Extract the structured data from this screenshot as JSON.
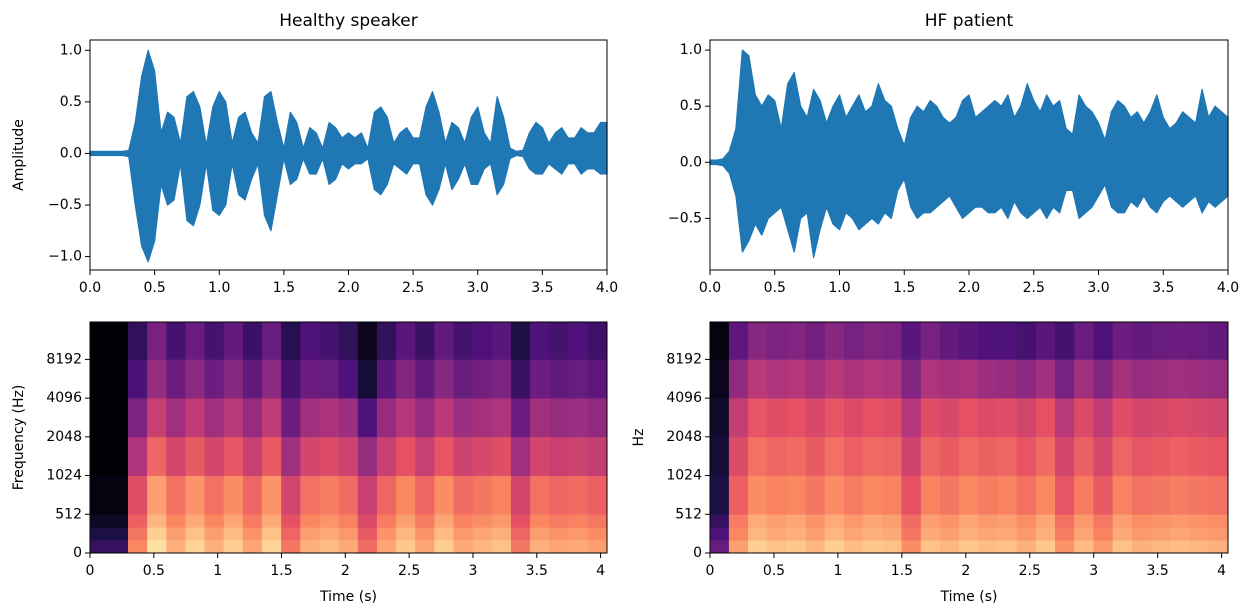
{
  "chart_data": [
    {
      "type": "waveform",
      "title": "Healthy speaker",
      "ylabel": "Amplitude",
      "color": "#1f77b4",
      "x": [
        0,
        0.05,
        0.1,
        0.15,
        0.2,
        0.25,
        0.3,
        0.35,
        0.4,
        0.45,
        0.5,
        0.55,
        0.6,
        0.65,
        0.7,
        0.75,
        0.8,
        0.85,
        0.9,
        0.95,
        1,
        1.05,
        1.1,
        1.15,
        1.2,
        1.25,
        1.3,
        1.35,
        1.4,
        1.45,
        1.5,
        1.55,
        1.6,
        1.65,
        1.7,
        1.75,
        1.8,
        1.85,
        1.9,
        1.95,
        2,
        2.05,
        2.1,
        2.15,
        2.2,
        2.25,
        2.3,
        2.35,
        2.4,
        2.45,
        2.5,
        2.55,
        2.6,
        2.65,
        2.7,
        2.75,
        2.8,
        2.85,
        2.9,
        2.95,
        3,
        3.05,
        3.1,
        3.15,
        3.2,
        3.25,
        3.3,
        3.35,
        3.4,
        3.45,
        3.5,
        3.55,
        3.6,
        3.65,
        3.7,
        3.75,
        3.8,
        3.85,
        3.9,
        3.95,
        4
      ],
      "upper": [
        0.02,
        0.02,
        0.02,
        0.02,
        0.02,
        0.02,
        0.03,
        0.3,
        0.75,
        1.0,
        0.8,
        0.2,
        0.4,
        0.35,
        0.1,
        0.55,
        0.6,
        0.45,
        0.08,
        0.45,
        0.6,
        0.5,
        0.1,
        0.35,
        0.4,
        0.2,
        0.1,
        0.55,
        0.6,
        0.3,
        0.05,
        0.4,
        0.3,
        0.05,
        0.25,
        0.2,
        0.05,
        0.3,
        0.25,
        0.15,
        0.2,
        0.15,
        0.2,
        0.05,
        0.4,
        0.45,
        0.35,
        0.1,
        0.2,
        0.25,
        0.15,
        0.15,
        0.45,
        0.6,
        0.4,
        0.1,
        0.3,
        0.25,
        0.1,
        0.35,
        0.45,
        0.2,
        0.1,
        0.55,
        0.35,
        0.05,
        0.02,
        0.03,
        0.2,
        0.3,
        0.25,
        0.1,
        0.2,
        0.25,
        0.15,
        0.15,
        0.25,
        0.2,
        0.2,
        0.3,
        0.3
      ],
      "lower": [
        -0.02,
        -0.02,
        -0.02,
        -0.02,
        -0.02,
        -0.02,
        -0.03,
        -0.5,
        -0.9,
        -1.05,
        -0.85,
        -0.3,
        -0.5,
        -0.45,
        -0.1,
        -0.65,
        -0.7,
        -0.5,
        -0.1,
        -0.55,
        -0.6,
        -0.5,
        -0.1,
        -0.4,
        -0.45,
        -0.25,
        -0.1,
        -0.6,
        -0.75,
        -0.4,
        -0.05,
        -0.3,
        -0.25,
        -0.05,
        -0.2,
        -0.2,
        -0.05,
        -0.3,
        -0.25,
        -0.1,
        -0.15,
        -0.1,
        -0.1,
        -0.05,
        -0.35,
        -0.4,
        -0.3,
        -0.1,
        -0.15,
        -0.2,
        -0.1,
        -0.1,
        -0.4,
        -0.5,
        -0.35,
        -0.1,
        -0.35,
        -0.25,
        -0.1,
        -0.3,
        -0.3,
        -0.15,
        -0.1,
        -0.4,
        -0.3,
        -0.05,
        -0.02,
        -0.03,
        -0.15,
        -0.2,
        -0.2,
        -0.1,
        -0.15,
        -0.2,
        -0.1,
        -0.1,
        -0.2,
        -0.15,
        -0.15,
        -0.2,
        -0.2
      ],
      "xlim": [
        0,
        4
      ],
      "ylim": [
        -1.13,
        1.1
      ],
      "xticks": [
        {
          "value": 0,
          "label": "0.0"
        },
        {
          "value": 0.5,
          "label": "0.5"
        },
        {
          "value": 1,
          "label": "1.0"
        },
        {
          "value": 1.5,
          "label": "1.5"
        },
        {
          "value": 2,
          "label": "2.0"
        },
        {
          "value": 2.5,
          "label": "2.5"
        },
        {
          "value": 3,
          "label": "3.0"
        },
        {
          "value": 3.5,
          "label": "3.5"
        },
        {
          "value": 4,
          "label": "4.0"
        }
      ],
      "yticks": [
        {
          "value": -1,
          "label": "−1.0"
        },
        {
          "value": -0.5,
          "label": "−0.5"
        },
        {
          "value": 0,
          "label": "0.0"
        },
        {
          "value": 0.5,
          "label": "0.5"
        },
        {
          "value": 1,
          "label": "1.0"
        }
      ]
    },
    {
      "type": "waveform",
      "title": "HF patient",
      "color": "#1f77b4",
      "x": [
        0,
        0.05,
        0.1,
        0.15,
        0.2,
        0.25,
        0.3,
        0.35,
        0.4,
        0.45,
        0.5,
        0.55,
        0.6,
        0.65,
        0.7,
        0.75,
        0.8,
        0.85,
        0.9,
        0.95,
        1,
        1.05,
        1.1,
        1.15,
        1.2,
        1.25,
        1.3,
        1.35,
        1.4,
        1.45,
        1.5,
        1.55,
        1.6,
        1.65,
        1.7,
        1.75,
        1.8,
        1.85,
        1.9,
        1.95,
        2,
        2.05,
        2.1,
        2.15,
        2.2,
        2.25,
        2.3,
        2.35,
        2.4,
        2.45,
        2.5,
        2.55,
        2.6,
        2.65,
        2.7,
        2.75,
        2.8,
        2.85,
        2.9,
        2.95,
        3,
        3.05,
        3.1,
        3.15,
        3.2,
        3.25,
        3.3,
        3.35,
        3.4,
        3.45,
        3.5,
        3.55,
        3.6,
        3.65,
        3.7,
        3.75,
        3.8,
        3.85,
        3.9,
        3.95,
        4
      ],
      "upper": [
        0.02,
        0.02,
        0.03,
        0.1,
        0.3,
        1.0,
        0.95,
        0.6,
        0.5,
        0.6,
        0.55,
        0.3,
        0.7,
        0.8,
        0.5,
        0.4,
        0.65,
        0.55,
        0.35,
        0.5,
        0.6,
        0.4,
        0.5,
        0.6,
        0.45,
        0.5,
        0.7,
        0.55,
        0.5,
        0.3,
        0.15,
        0.4,
        0.5,
        0.45,
        0.55,
        0.5,
        0.4,
        0.35,
        0.4,
        0.55,
        0.6,
        0.4,
        0.45,
        0.5,
        0.55,
        0.5,
        0.6,
        0.4,
        0.5,
        0.7,
        0.55,
        0.45,
        0.6,
        0.5,
        0.55,
        0.3,
        0.25,
        0.6,
        0.5,
        0.45,
        0.35,
        0.2,
        0.45,
        0.55,
        0.5,
        0.4,
        0.45,
        0.35,
        0.45,
        0.6,
        0.4,
        0.3,
        0.35,
        0.45,
        0.4,
        0.35,
        0.65,
        0.4,
        0.5,
        0.45,
        0.4
      ],
      "lower": [
        -0.02,
        -0.02,
        -0.03,
        -0.1,
        -0.3,
        -0.8,
        -0.7,
        -0.55,
        -0.65,
        -0.5,
        -0.45,
        -0.4,
        -0.6,
        -0.8,
        -0.5,
        -0.45,
        -0.85,
        -0.6,
        -0.4,
        -0.55,
        -0.6,
        -0.45,
        -0.5,
        -0.6,
        -0.55,
        -0.5,
        -0.55,
        -0.45,
        -0.5,
        -0.25,
        -0.15,
        -0.4,
        -0.5,
        -0.45,
        -0.45,
        -0.4,
        -0.35,
        -0.3,
        -0.4,
        -0.5,
        -0.45,
        -0.4,
        -0.4,
        -0.45,
        -0.45,
        -0.4,
        -0.5,
        -0.35,
        -0.45,
        -0.5,
        -0.45,
        -0.4,
        -0.5,
        -0.4,
        -0.45,
        -0.25,
        -0.25,
        -0.5,
        -0.45,
        -0.4,
        -0.3,
        -0.2,
        -0.4,
        -0.45,
        -0.45,
        -0.35,
        -0.4,
        -0.3,
        -0.4,
        -0.45,
        -0.35,
        -0.3,
        -0.35,
        -0.4,
        -0.35,
        -0.3,
        -0.45,
        -0.35,
        -0.4,
        -0.35,
        -0.3
      ],
      "xlim": [
        0,
        4
      ],
      "ylim": [
        -0.96,
        1.09
      ],
      "xticks": [
        {
          "value": 0,
          "label": "0.0"
        },
        {
          "value": 0.5,
          "label": "0.5"
        },
        {
          "value": 1,
          "label": "1.0"
        },
        {
          "value": 1.5,
          "label": "1.5"
        },
        {
          "value": 2,
          "label": "2.0"
        },
        {
          "value": 2.5,
          "label": "2.5"
        },
        {
          "value": 3,
          "label": "3.0"
        },
        {
          "value": 3.5,
          "label": "3.5"
        },
        {
          "value": 4,
          "label": "4.0"
        }
      ],
      "yticks": [
        {
          "value": -0.5,
          "label": "−0.5"
        },
        {
          "value": 0,
          "label": "0.0"
        },
        {
          "value": 0.5,
          "label": "0.5"
        },
        {
          "value": 1,
          "label": "1.0"
        }
      ]
    },
    {
      "type": "spectrogram",
      "xlabel": "Time (s)",
      "ylabel": "Frequency (Hz)",
      "colormap": "magma",
      "zlim": [
        -80,
        0
      ],
      "yscale": "symlog",
      "linthresh": 512,
      "time_edges": [
        0,
        0.15,
        0.3,
        0.45,
        0.6,
        0.75,
        0.9,
        1.05,
        1.2,
        1.35,
        1.5,
        1.65,
        1.8,
        1.95,
        2.1,
        2.25,
        2.4,
        2.55,
        2.7,
        2.85,
        3,
        3.15,
        3.3,
        3.45,
        3.6,
        3.75,
        3.9,
        4.05
      ],
      "freq_edges": [
        0,
        170,
        340,
        512,
        1024,
        2048,
        4096,
        8192,
        16000
      ],
      "z": [
        [
          -65,
          -65,
          -20,
          -5,
          -13,
          -7,
          -13,
          -8,
          -15,
          -7,
          -23,
          -13,
          -11,
          -14,
          -25,
          -15,
          -9,
          -15,
          -8,
          -14,
          -12,
          -10,
          -23,
          -13,
          -15,
          -14,
          -16
        ],
        [
          -70,
          -70,
          -23,
          -8,
          -16,
          -10,
          -16,
          -11,
          -18,
          -10,
          -26,
          -16,
          -14,
          -17,
          -28,
          -18,
          -12,
          -18,
          -11,
          -17,
          -15,
          -13,
          -26,
          -16,
          -18,
          -17,
          -19
        ],
        [
          -75,
          -75,
          -27,
          -12,
          -20,
          -14,
          -20,
          -15,
          -22,
          -14,
          -30,
          -20,
          -18,
          -21,
          -32,
          -22,
          -16,
          -22,
          -15,
          -21,
          -19,
          -17,
          -30,
          -20,
          -22,
          -21,
          -23
        ],
        [
          -78,
          -78,
          -31,
          -16,
          -24,
          -18,
          -24,
          -19,
          -26,
          -18,
          -34,
          -24,
          -22,
          -25,
          -36,
          -26,
          -20,
          -26,
          -19,
          -25,
          -23,
          -21,
          -34,
          -24,
          -26,
          -25,
          -27
        ],
        [
          -80,
          -80,
          -41,
          -26,
          -34,
          -28,
          -34,
          -29,
          -36,
          -28,
          -44,
          -34,
          -32,
          -35,
          -46,
          -36,
          -30,
          -36,
          -29,
          -35,
          -33,
          -31,
          -44,
          -34,
          -36,
          -35,
          -37
        ],
        [
          -80,
          -80,
          -51,
          -36,
          -44,
          -38,
          -44,
          -39,
          -46,
          -38,
          -54,
          -44,
          -42,
          -45,
          -60,
          -46,
          -40,
          -46,
          -39,
          -45,
          -43,
          -41,
          -54,
          -44,
          -46,
          -45,
          -47
        ],
        [
          -80,
          -80,
          -61,
          -46,
          -54,
          -48,
          -54,
          -49,
          -56,
          -48,
          -62,
          -54,
          -55,
          -60,
          -72,
          -58,
          -50,
          -56,
          -49,
          -55,
          -53,
          -51,
          -64,
          -54,
          -56,
          -55,
          -57
        ],
        [
          -80,
          -80,
          -66,
          -52,
          -62,
          -55,
          -62,
          -56,
          -64,
          -55,
          -68,
          -60,
          -62,
          -66,
          -76,
          -66,
          -58,
          -64,
          -56,
          -62,
          -60,
          -58,
          -70,
          -60,
          -62,
          -60,
          -63
        ]
      ],
      "xlim": [
        0,
        4.05
      ],
      "ylim": [
        0,
        16000
      ],
      "xticks": [
        0,
        0.5,
        1,
        1.5,
        2,
        2.5,
        3,
        3.5,
        4
      ],
      "yticks": [
        0,
        512,
        1024,
        2048,
        4096,
        8192
      ]
    },
    {
      "type": "spectrogram",
      "xlabel": "Time (s)",
      "ylabel": "Hz",
      "colormap": "magma",
      "zlim": [
        -80,
        0
      ],
      "yscale": "symlog",
      "linthresh": 512,
      "time_edges": [
        0,
        0.15,
        0.3,
        0.45,
        0.6,
        0.75,
        0.9,
        1.05,
        1.2,
        1.35,
        1.5,
        1.65,
        1.8,
        1.95,
        2.1,
        2.25,
        2.4,
        2.55,
        2.7,
        2.85,
        3,
        3.15,
        3.3,
        3.45,
        3.6,
        3.75,
        3.9,
        4.05
      ],
      "freq_edges": [
        0,
        170,
        340,
        512,
        1024,
        2048,
        4096,
        8192,
        16000
      ],
      "z": [
        [
          -55,
          -16,
          -8,
          -10,
          -9,
          -12,
          -8,
          -11,
          -9,
          -10,
          -19,
          -10,
          -12,
          -9,
          -11,
          -10,
          -13,
          -9,
          -18,
          -11,
          -17,
          -10,
          -13,
          -12,
          -11,
          -12,
          -13
        ],
        [
          -60,
          -20,
          -12,
          -14,
          -13,
          -16,
          -12,
          -15,
          -13,
          -14,
          -23,
          -14,
          -16,
          -13,
          -15,
          -14,
          -17,
          -13,
          -22,
          -15,
          -21,
          -14,
          -17,
          -16,
          -15,
          -16,
          -17
        ],
        [
          -65,
          -22,
          -14,
          -16,
          -15,
          -18,
          -14,
          -17,
          -15,
          -16,
          -25,
          -16,
          -18,
          -15,
          -17,
          -16,
          -19,
          -15,
          -24,
          -17,
          -23,
          -16,
          -19,
          -18,
          -17,
          -18,
          -19
        ],
        [
          -70,
          -27,
          -19,
          -21,
          -20,
          -23,
          -19,
          -22,
          -20,
          -21,
          -30,
          -21,
          -23,
          -20,
          -22,
          -21,
          -24,
          -20,
          -29,
          -22,
          -28,
          -21,
          -24,
          -23,
          -22,
          -23,
          -24
        ],
        [
          -72,
          -32,
          -24,
          -26,
          -25,
          -28,
          -24,
          -27,
          -25,
          -26,
          -35,
          -26,
          -28,
          -25,
          -27,
          -26,
          -29,
          -25,
          -34,
          -27,
          -33,
          -26,
          -29,
          -28,
          -27,
          -28,
          -29
        ],
        [
          -74,
          -37,
          -29,
          -31,
          -30,
          -33,
          -29,
          -32,
          -30,
          -31,
          -40,
          -31,
          -33,
          -30,
          -32,
          -31,
          -34,
          -30,
          -39,
          -32,
          -38,
          -31,
          -34,
          -33,
          -32,
          -33,
          -34
        ],
        [
          -76,
          -47,
          -39,
          -41,
          -40,
          -43,
          -39,
          -42,
          -40,
          -41,
          -50,
          -41,
          -43,
          -42,
          -45,
          -46,
          -48,
          -44,
          -52,
          -44,
          -50,
          -43,
          -46,
          -45,
          -44,
          -45,
          -46
        ],
        [
          -78,
          -57,
          -49,
          -51,
          -50,
          -53,
          -49,
          -52,
          -50,
          -51,
          -58,
          -52,
          -56,
          -58,
          -60,
          -60,
          -62,
          -58,
          -62,
          -55,
          -60,
          -54,
          -56,
          -55,
          -54,
          -55,
          -56
        ]
      ],
      "xlim": [
        0,
        4.05
      ],
      "ylim": [
        0,
        16000
      ],
      "xticks": [
        0,
        0.5,
        1,
        1.5,
        2,
        2.5,
        3,
        3.5,
        4
      ],
      "yticks": [
        0,
        512,
        1024,
        2048,
        4096,
        8192
      ]
    }
  ]
}
